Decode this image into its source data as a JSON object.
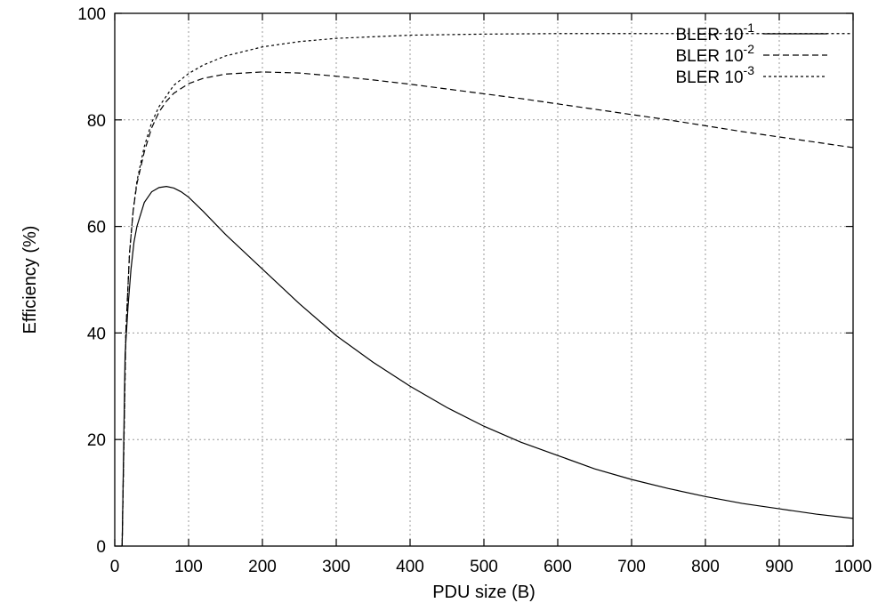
{
  "chart_data": {
    "type": "line",
    "xlabel": "PDU size (B)",
    "ylabel": "Efficiency (%)",
    "xlim": [
      0,
      1000
    ],
    "ylim": [
      0,
      100
    ],
    "xticks": [
      "0",
      "100",
      "200",
      "300",
      "400",
      "500",
      "600",
      "700",
      "800",
      "900",
      "1000"
    ],
    "yticks": [
      "0",
      "20",
      "40",
      "60",
      "80",
      "100"
    ],
    "grid": true,
    "legend_position": "top-right",
    "series": [
      {
        "name": "BLER 10",
        "exponent": "-1",
        "style": "solid",
        "x": [
          10,
          14,
          18,
          22,
          26,
          30,
          40,
          50,
          60,
          70,
          80,
          90,
          100,
          120,
          150,
          200,
          250,
          300,
          350,
          400,
          450,
          500,
          550,
          600,
          650,
          700,
          750,
          800,
          850,
          900,
          950,
          1000
        ],
        "y": [
          0,
          36,
          45,
          52,
          57,
          60,
          64.5,
          66.5,
          67.3,
          67.5,
          67.2,
          66.5,
          65.5,
          62.8,
          58.5,
          52,
          45.5,
          39.5,
          34.5,
          30,
          26,
          22.5,
          19.5,
          17,
          14.5,
          12.5,
          10.8,
          9.3,
          8,
          7,
          6,
          5.2
        ]
      },
      {
        "name": "BLER 10",
        "exponent": "-2",
        "style": "dashed",
        "x": [
          10,
          15,
          20,
          25,
          30,
          40,
          50,
          60,
          70,
          80,
          100,
          120,
          150,
          200,
          250,
          300,
          350,
          400,
          450,
          500,
          550,
          600,
          650,
          700,
          750,
          800,
          850,
          900,
          950,
          1000
        ],
        "y": [
          0,
          40,
          55,
          63,
          68,
          74,
          78.5,
          81.5,
          83.5,
          85,
          86.8,
          87.8,
          88.6,
          89,
          88.8,
          88.2,
          87.5,
          86.7,
          85.8,
          84.9,
          84,
          83,
          82,
          81,
          80,
          78.9,
          77.8,
          76.8,
          75.8,
          74.8
        ]
      },
      {
        "name": "BLER 10",
        "exponent": "-3",
        "style": "dotted",
        "x": [
          10,
          15,
          20,
          25,
          30,
          40,
          50,
          60,
          70,
          80,
          100,
          120,
          150,
          200,
          250,
          300,
          400,
          500,
          600,
          700,
          800,
          900,
          1000
        ],
        "y": [
          0,
          40,
          55,
          63,
          68.5,
          75,
          79.5,
          82.5,
          84.5,
          86.5,
          88.7,
          90.3,
          92,
          93.7,
          94.7,
          95.3,
          95.9,
          96.1,
          96.2,
          96.2,
          96.2,
          96.2,
          96.2
        ]
      }
    ]
  }
}
